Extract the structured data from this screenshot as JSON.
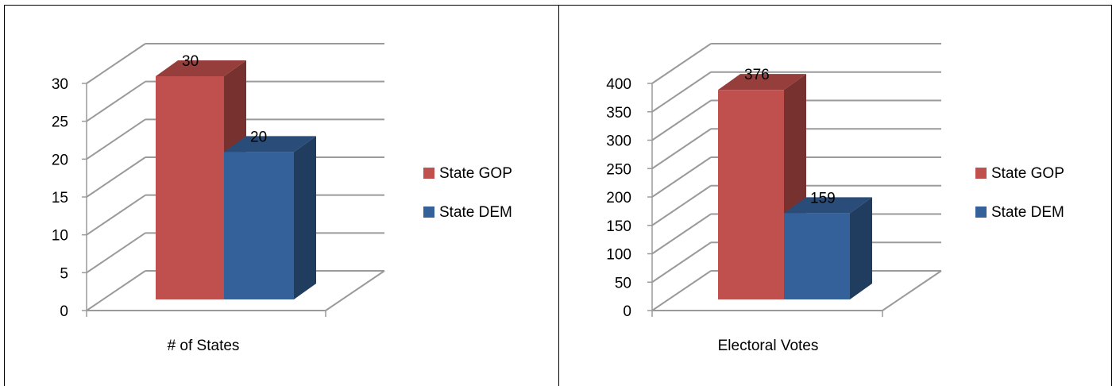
{
  "chart_data": [
    {
      "type": "bar",
      "categories": [
        "# of States"
      ],
      "series": [
        {
          "name": "State GOP",
          "values": [
            30
          ],
          "color": "#C0504D"
        },
        {
          "name": "State DEM",
          "values": [
            20
          ],
          "color": "#34619A"
        }
      ],
      "ylim": [
        0,
        30
      ],
      "yticks": [
        0,
        5,
        10,
        15,
        20,
        25,
        30
      ],
      "legend": "right",
      "grid": true,
      "three_d": true
    },
    {
      "type": "bar",
      "categories": [
        "Electoral Votes"
      ],
      "series": [
        {
          "name": "State GOP",
          "values": [
            376
          ],
          "color": "#C0504D"
        },
        {
          "name": "State DEM",
          "values": [
            159
          ],
          "color": "#34619A"
        }
      ],
      "ylim": [
        0,
        400
      ],
      "yticks": [
        0,
        50,
        100,
        150,
        200,
        250,
        300,
        350,
        400
      ],
      "legend": "right",
      "grid": true,
      "three_d": true
    }
  ]
}
